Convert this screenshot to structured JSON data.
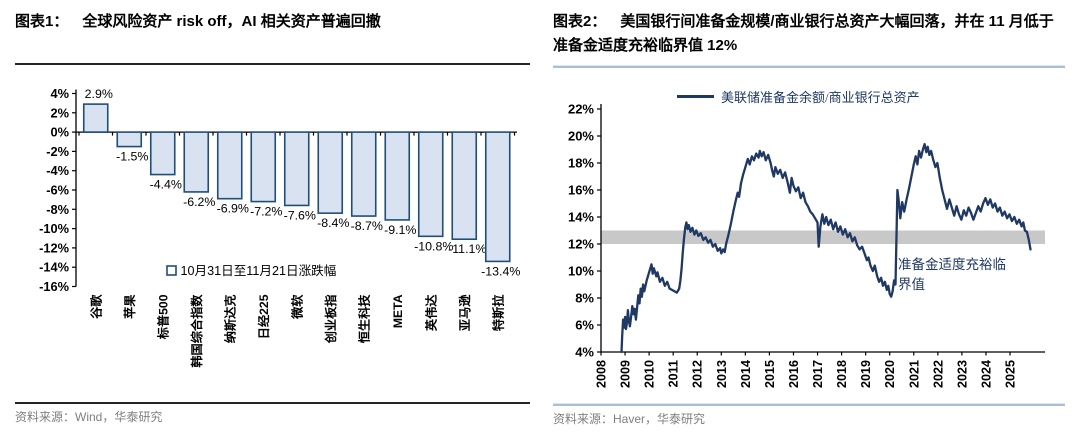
{
  "figure1": {
    "label": "图表1：",
    "title": "全球风险资产 risk off，AI 相关资产普遍回撤",
    "source": "资料来源：Wind，华泰研究"
  },
  "figure2": {
    "label": "图表2：",
    "title": "美国银行间准备金规模/商业银行总资产大幅回落，并在 11 月低于准备金适度充裕临界值 12%",
    "source": "资料来源：Haver，华泰研究"
  },
  "colors": {
    "bar_fill": "#d9e2f0",
    "bar_border": "#1f4e79",
    "line": "#1f3864",
    "band": "#c8c8c8",
    "axis": "#000000",
    "legend_text": "#1f3a6e",
    "separator_dark": "#262626",
    "separator_blue": "#a9bed8",
    "source_gray": "#7f7f7f"
  },
  "chart_data": [
    {
      "type": "bar",
      "title": "全球风险资产 risk off，AI 相关资产普遍回撤",
      "legend": "10月31日至11月21日涨跌幅",
      "categories": [
        "谷歌",
        "苹果",
        "标普500",
        "韩国综合指数",
        "纳斯达克",
        "日经225",
        "微软",
        "创业板指",
        "恒生科技",
        "META",
        "英伟达",
        "亚马逊",
        "特斯拉"
      ],
      "values": [
        2.9,
        -1.5,
        -4.4,
        -6.2,
        -6.9,
        -7.2,
        -7.6,
        -8.4,
        -8.7,
        -9.1,
        -10.8,
        -11.1,
        -13.4
      ],
      "labels": [
        "2.9%",
        "-1.5%",
        "-4.4%",
        "-6.2%",
        "-6.9%",
        "-7.2%",
        "-7.6%",
        "-8.4%",
        "-8.7%",
        "-9.1%",
        "-10.8%",
        "-11.1%",
        "-13.4%"
      ],
      "xlabel": "",
      "ylabel": "",
      "ylim": [
        -16,
        4
      ],
      "ytick_step": 2,
      "grid": false,
      "legend_position": "bottom-center-inside"
    },
    {
      "type": "line",
      "title": "美国银行间准备金规模/商业银行总资产大幅回落，并在 11 月低于准备金适度充裕临界值 12%",
      "legend": "美联储准备金余额/商业银行总资产",
      "legend_position": "top-center",
      "xlabel": "",
      "ylabel": "",
      "ylim": [
        4,
        22
      ],
      "ytick_step": 2,
      "xlim": [
        2008,
        2026.4
      ],
      "xticks": [
        2008,
        2009,
        2010,
        2011,
        2012,
        2013,
        2014,
        2015,
        2016,
        2017,
        2018,
        2019,
        2020,
        2021,
        2022,
        2023,
        2024,
        2025
      ],
      "grid": false,
      "band": {
        "from": 12,
        "to": 13,
        "label": "准备金适度充裕临界值"
      },
      "series": [
        {
          "name": "美联储准备金余额/商业银行总资产",
          "points": [
            [
              2008.85,
              4.0
            ],
            [
              2008.88,
              5.2
            ],
            [
              2008.92,
              6.4
            ],
            [
              2008.96,
              5.8
            ],
            [
              2009.0,
              6.6
            ],
            [
              2009.04,
              5.7
            ],
            [
              2009.08,
              6.2
            ],
            [
              2009.12,
              7.1
            ],
            [
              2009.16,
              6.3
            ],
            [
              2009.2,
              5.9
            ],
            [
              2009.25,
              6.6
            ],
            [
              2009.3,
              7.4
            ],
            [
              2009.35,
              6.8
            ],
            [
              2009.4,
              7.2
            ],
            [
              2009.45,
              6.4
            ],
            [
              2009.5,
              7.3
            ],
            [
              2009.55,
              8.2
            ],
            [
              2009.6,
              7.6
            ],
            [
              2009.65,
              8.7
            ],
            [
              2009.7,
              8.1
            ],
            [
              2009.75,
              9.0
            ],
            [
              2009.8,
              8.5
            ],
            [
              2009.9,
              9.3
            ],
            [
              2010.0,
              9.9
            ],
            [
              2010.1,
              10.5
            ],
            [
              2010.15,
              9.8
            ],
            [
              2010.2,
              10.2
            ],
            [
              2010.3,
              9.6
            ],
            [
              2010.35,
              9.9
            ],
            [
              2010.45,
              9.2
            ],
            [
              2010.55,
              9.5
            ],
            [
              2010.65,
              8.9
            ],
            [
              2010.75,
              9.2
            ],
            [
              2010.85,
              8.7
            ],
            [
              2010.95,
              8.6
            ],
            [
              2011.05,
              8.5
            ],
            [
              2011.15,
              8.4
            ],
            [
              2011.25,
              8.7
            ],
            [
              2011.3,
              9.3
            ],
            [
              2011.35,
              10.2
            ],
            [
              2011.4,
              11.4
            ],
            [
              2011.45,
              12.4
            ],
            [
              2011.5,
              13.2
            ],
            [
              2011.55,
              13.6
            ],
            [
              2011.6,
              13.1
            ],
            [
              2011.65,
              13.4
            ],
            [
              2011.72,
              12.9
            ],
            [
              2011.8,
              13.2
            ],
            [
              2011.88,
              12.7
            ],
            [
              2011.96,
              13.0
            ],
            [
              2012.05,
              12.6
            ],
            [
              2012.15,
              12.8
            ],
            [
              2012.25,
              12.3
            ],
            [
              2012.35,
              12.5
            ],
            [
              2012.45,
              12.1
            ],
            [
              2012.55,
              12.3
            ],
            [
              2012.65,
              11.8
            ],
            [
              2012.75,
              12.0
            ],
            [
              2012.85,
              11.5
            ],
            [
              2012.95,
              11.7
            ],
            [
              2013.0,
              11.3
            ],
            [
              2013.08,
              11.6
            ],
            [
              2013.14,
              11.4
            ],
            [
              2013.2,
              12.0
            ],
            [
              2013.3,
              12.7
            ],
            [
              2013.4,
              13.5
            ],
            [
              2013.5,
              14.4
            ],
            [
              2013.6,
              15.2
            ],
            [
              2013.68,
              15.8
            ],
            [
              2013.74,
              15.5
            ],
            [
              2013.82,
              16.5
            ],
            [
              2013.9,
              17.1
            ],
            [
              2014.0,
              17.7
            ],
            [
              2014.1,
              18.3
            ],
            [
              2014.18,
              17.9
            ],
            [
              2014.27,
              18.5
            ],
            [
              2014.36,
              18.2
            ],
            [
              2014.45,
              18.7
            ],
            [
              2014.55,
              18.4
            ],
            [
              2014.6,
              18.9
            ],
            [
              2014.68,
              18.5
            ],
            [
              2014.76,
              18.8
            ],
            [
              2014.85,
              18.2
            ],
            [
              2014.95,
              18.6
            ],
            [
              2015.05,
              18.0
            ],
            [
              2015.12,
              17.4
            ],
            [
              2015.18,
              17.0
            ],
            [
              2015.25,
              17.7
            ],
            [
              2015.35,
              17.2
            ],
            [
              2015.45,
              17.5
            ],
            [
              2015.55,
              16.9
            ],
            [
              2015.65,
              17.3
            ],
            [
              2015.75,
              16.6
            ],
            [
              2015.85,
              15.8
            ],
            [
              2015.92,
              16.9
            ],
            [
              2016.0,
              16.3
            ],
            [
              2016.1,
              15.9
            ],
            [
              2016.2,
              16.2
            ],
            [
              2016.3,
              15.4
            ],
            [
              2016.4,
              15.8
            ],
            [
              2016.5,
              15.1
            ],
            [
              2016.6,
              14.8
            ],
            [
              2016.7,
              14.4
            ],
            [
              2016.8,
              14.2
            ],
            [
              2016.9,
              13.9
            ],
            [
              2017.0,
              13.6
            ],
            [
              2017.05,
              11.8
            ],
            [
              2017.12,
              13.3
            ],
            [
              2017.2,
              14.2
            ],
            [
              2017.28,
              13.5
            ],
            [
              2017.36,
              14.0
            ],
            [
              2017.45,
              13.4
            ],
            [
              2017.55,
              13.8
            ],
            [
              2017.65,
              13.1
            ],
            [
              2017.75,
              13.6
            ],
            [
              2017.85,
              12.9
            ],
            [
              2017.95,
              13.3
            ],
            [
              2018.05,
              12.7
            ],
            [
              2018.15,
              13.1
            ],
            [
              2018.25,
              12.5
            ],
            [
              2018.35,
              12.8
            ],
            [
              2018.45,
              12.2
            ],
            [
              2018.55,
              12.5
            ],
            [
              2018.65,
              11.9
            ],
            [
              2018.75,
              11.6
            ],
            [
              2018.85,
              11.8
            ],
            [
              2018.95,
              11.3
            ],
            [
              2019.05,
              10.8
            ],
            [
              2019.12,
              11.0
            ],
            [
              2019.2,
              10.4
            ],
            [
              2019.3,
              10.0
            ],
            [
              2019.38,
              10.4
            ],
            [
              2019.48,
              9.6
            ],
            [
              2019.56,
              9.2
            ],
            [
              2019.64,
              9.5
            ],
            [
              2019.72,
              8.9
            ],
            [
              2019.8,
              9.2
            ],
            [
              2019.88,
              8.6
            ],
            [
              2019.94,
              8.9
            ],
            [
              2020.0,
              8.3
            ],
            [
              2020.06,
              8.1
            ],
            [
              2020.12,
              8.5
            ],
            [
              2020.18,
              9.3
            ],
            [
              2020.24,
              9.0
            ],
            [
              2020.28,
              12.6
            ],
            [
              2020.32,
              16.0
            ],
            [
              2020.38,
              15.1
            ],
            [
              2020.44,
              13.9
            ],
            [
              2020.52,
              15.1
            ],
            [
              2020.6,
              14.4
            ],
            [
              2020.7,
              15.3
            ],
            [
              2020.8,
              16.1
            ],
            [
              2020.9,
              17.0
            ],
            [
              2021.0,
              17.9
            ],
            [
              2021.08,
              18.5
            ],
            [
              2021.15,
              17.9
            ],
            [
              2021.22,
              18.9
            ],
            [
              2021.3,
              18.4
            ],
            [
              2021.38,
              19.0
            ],
            [
              2021.45,
              19.4
            ],
            [
              2021.52,
              18.8
            ],
            [
              2021.58,
              19.2
            ],
            [
              2021.65,
              18.6
            ],
            [
              2021.72,
              18.9
            ],
            [
              2021.8,
              18.3
            ],
            [
              2021.9,
              17.7
            ],
            [
              2021.98,
              18.0
            ],
            [
              2022.08,
              16.9
            ],
            [
              2022.18,
              16.0
            ],
            [
              2022.28,
              15.3
            ],
            [
              2022.38,
              14.6
            ],
            [
              2022.48,
              15.3
            ],
            [
              2022.58,
              14.7
            ],
            [
              2022.68,
              14.1
            ],
            [
              2022.78,
              14.8
            ],
            [
              2022.88,
              14.2
            ],
            [
              2022.98,
              13.8
            ],
            [
              2023.08,
              14.5
            ],
            [
              2023.18,
              14.1
            ],
            [
              2023.28,
              14.7
            ],
            [
              2023.38,
              14.3
            ],
            [
              2023.48,
              13.8
            ],
            [
              2023.58,
              14.3
            ],
            [
              2023.68,
              14.8
            ],
            [
              2023.78,
              14.4
            ],
            [
              2023.88,
              15.0
            ],
            [
              2023.98,
              15.4
            ],
            [
              2024.08,
              14.9
            ],
            [
              2024.18,
              15.3
            ],
            [
              2024.28,
              14.7
            ],
            [
              2024.38,
              15.0
            ],
            [
              2024.48,
              14.4
            ],
            [
              2024.58,
              14.7
            ],
            [
              2024.68,
              14.1
            ],
            [
              2024.78,
              14.4
            ],
            [
              2024.88,
              13.9
            ],
            [
              2024.98,
              14.2
            ],
            [
              2025.08,
              13.7
            ],
            [
              2025.18,
              14.0
            ],
            [
              2025.28,
              13.5
            ],
            [
              2025.38,
              13.8
            ],
            [
              2025.48,
              13.3
            ],
            [
              2025.55,
              13.6
            ],
            [
              2025.62,
              13.0
            ],
            [
              2025.7,
              12.9
            ],
            [
              2025.78,
              12.3
            ],
            [
              2025.85,
              11.6
            ]
          ]
        }
      ]
    }
  ]
}
